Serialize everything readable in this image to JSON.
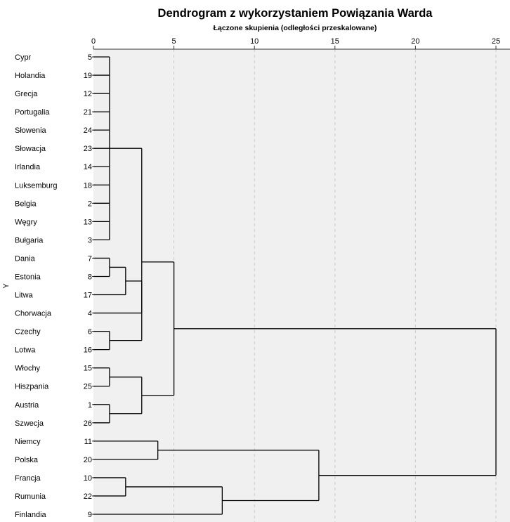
{
  "chart_data": {
    "type": "dendrogram",
    "title": "Dendrogram z wykorzystaniem Powiązania Warda",
    "subtitle": "Łączone skupienia (odległości przeskalowane)",
    "ylabel": "Y",
    "xlim": [
      0,
      25
    ],
    "xticks": [
      0,
      5,
      10,
      15,
      20,
      25
    ],
    "grid": true,
    "leaves": [
      {
        "name": "Cypr",
        "id": "5"
      },
      {
        "name": "Holandia",
        "id": "19"
      },
      {
        "name": "Grecja",
        "id": "12"
      },
      {
        "name": "Portugalia",
        "id": "21"
      },
      {
        "name": "Słowenia",
        "id": "24"
      },
      {
        "name": "Słowacja",
        "id": "23"
      },
      {
        "name": "Irlandia",
        "id": "14"
      },
      {
        "name": "Luksemburg",
        "id": "18"
      },
      {
        "name": "Belgia",
        "id": "2"
      },
      {
        "name": "Węgry",
        "id": "13"
      },
      {
        "name": "Bułgaria",
        "id": "3"
      },
      {
        "name": "Dania",
        "id": "7"
      },
      {
        "name": "Estonia",
        "id": "8"
      },
      {
        "name": "Litwa",
        "id": "17"
      },
      {
        "name": "Chorwacja",
        "id": "4"
      },
      {
        "name": "Czechy",
        "id": "6"
      },
      {
        "name": "Lotwa",
        "id": "16"
      },
      {
        "name": "Włochy",
        "id": "15"
      },
      {
        "name": "Hiszpania",
        "id": "25"
      },
      {
        "name": "Austria",
        "id": "1"
      },
      {
        "name": "Szwecja",
        "id": "26"
      },
      {
        "name": "Niemcy",
        "id": "11"
      },
      {
        "name": "Polska",
        "id": "20"
      },
      {
        "name": "Francja",
        "id": "10"
      },
      {
        "name": "Rumunia",
        "id": "22"
      },
      {
        "name": "Finlandia",
        "id": "9"
      }
    ],
    "merges": [
      {
        "children": [
          0,
          1,
          2,
          3,
          4,
          5,
          6,
          7,
          8,
          9,
          10
        ],
        "height": 1.0
      },
      {
        "children": [
          11,
          12
        ],
        "height": 1.0
      },
      {
        "children": [
          27,
          13
        ],
        "height": 2.0
      },
      {
        "children": [
          28,
          14
        ],
        "height": 3.0
      },
      {
        "children": [
          15,
          16
        ],
        "height": 1.0
      },
      {
        "children": [
          26,
          29,
          30
        ],
        "height": 3.0
      },
      {
        "children": [
          17,
          18
        ],
        "height": 1.0
      },
      {
        "children": [
          19,
          20
        ],
        "height": 1.0
      },
      {
        "children": [
          32,
          33
        ],
        "height": 3.0
      },
      {
        "children": [
          31,
          34
        ],
        "height": 5.0
      },
      {
        "children": [
          21,
          22
        ],
        "height": 4.0
      },
      {
        "children": [
          23,
          24
        ],
        "height": 2.0
      },
      {
        "children": [
          37,
          25
        ],
        "height": 8.0
      },
      {
        "children": [
          36,
          38
        ],
        "height": 14.0
      },
      {
        "children": [
          35,
          39
        ],
        "height": 25.0
      }
    ],
    "colors": {
      "plot_background": "#f0f0f0",
      "grid": "#c8c8c8",
      "line": "#000000"
    }
  }
}
